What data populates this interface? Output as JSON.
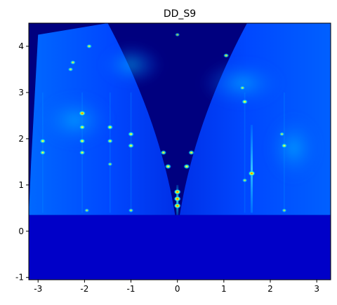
{
  "chart_data": {
    "type": "heatmap",
    "title": "DD_S9",
    "xlabel": "",
    "ylabel": "",
    "xlim": [
      -3.2,
      3.3
    ],
    "ylim": [
      -1.05,
      4.5
    ],
    "xticks": [
      -3,
      -2,
      -1,
      0,
      1,
      2,
      3
    ],
    "yticks": [
      -1,
      0,
      1,
      2,
      3,
      4
    ],
    "grid": false,
    "legend": "none",
    "colormap": "jet",
    "colors": {
      "background": "#00007f",
      "low": "#0000c8",
      "mid": "#0050ff",
      "high": "#00c8ff",
      "peak": "#ffff00",
      "max": "#ff2000"
    },
    "horizon_y": 0.35,
    "wedge_features": [
      {
        "side": "left",
        "inner_curve": [
          [
            -0.05,
            0.35
          ],
          [
            -0.25,
            1.6
          ],
          [
            -0.7,
            3.0
          ],
          [
            -1.5,
            4.5
          ]
        ]
      },
      {
        "side": "right",
        "inner_curve": [
          [
            0.05,
            0.35
          ],
          [
            0.25,
            1.6
          ],
          [
            0.7,
            3.0
          ],
          [
            1.5,
            4.5
          ]
        ]
      }
    ],
    "streaks": [
      {
        "x": 1.6,
        "y0": 0.4,
        "y1": 2.3,
        "intensity": 0.9
      },
      {
        "x": 0.0,
        "y0": 0.35,
        "y1": 1.0,
        "intensity": 1.0
      }
    ],
    "peaks": [
      {
        "x": 0.0,
        "y": 0.85,
        "intensity": 1.0
      },
      {
        "x": 0.0,
        "y": 0.7,
        "intensity": 1.0
      },
      {
        "x": 0.0,
        "y": 0.55,
        "intensity": 1.0
      },
      {
        "x": -0.2,
        "y": 1.4,
        "intensity": 0.9
      },
      {
        "x": 0.2,
        "y": 1.4,
        "intensity": 0.9
      },
      {
        "x": -0.3,
        "y": 1.7,
        "intensity": 0.8
      },
      {
        "x": 0.3,
        "y": 1.7,
        "intensity": 0.8
      },
      {
        "x": 1.6,
        "y": 1.25,
        "intensity": 1.0
      },
      {
        "x": 1.45,
        "y": 2.8,
        "intensity": 0.85
      },
      {
        "x": 2.3,
        "y": 1.85,
        "intensity": 0.8
      },
      {
        "x": -2.9,
        "y": 1.95,
        "intensity": 0.85
      },
      {
        "x": -2.9,
        "y": 1.7,
        "intensity": 0.8
      },
      {
        "x": -2.05,
        "y": 2.55,
        "intensity": 0.95
      },
      {
        "x": -2.05,
        "y": 2.25,
        "intensity": 0.85
      },
      {
        "x": -2.05,
        "y": 1.95,
        "intensity": 0.85
      },
      {
        "x": -2.05,
        "y": 1.7,
        "intensity": 0.8
      },
      {
        "x": -1.45,
        "y": 2.25,
        "intensity": 0.85
      },
      {
        "x": -1.45,
        "y": 1.95,
        "intensity": 0.75
      },
      {
        "x": -1.0,
        "y": 2.1,
        "intensity": 0.85
      },
      {
        "x": -1.0,
        "y": 1.85,
        "intensity": 0.85
      },
      {
        "x": -1.9,
        "y": 4.0,
        "intensity": 0.7
      },
      {
        "x": -2.25,
        "y": 3.65,
        "intensity": 0.7
      },
      {
        "x": -2.3,
        "y": 3.5,
        "intensity": 0.65
      },
      {
        "x": 1.05,
        "y": 3.8,
        "intensity": 0.7
      },
      {
        "x": 1.4,
        "y": 3.1,
        "intensity": 0.6
      },
      {
        "x": 2.25,
        "y": 2.1,
        "intensity": 0.6
      },
      {
        "x": 1.45,
        "y": 1.1,
        "intensity": 0.6
      },
      {
        "x": -1.45,
        "y": 1.45,
        "intensity": 0.55
      },
      {
        "x": -1.0,
        "y": 0.45,
        "intensity": 0.6
      },
      {
        "x": 0.0,
        "y": 4.25,
        "intensity": 0.5
      },
      {
        "x": -1.95,
        "y": 0.45,
        "intensity": 0.55
      },
      {
        "x": 2.3,
        "y": 0.45,
        "intensity": 0.55
      }
    ]
  }
}
